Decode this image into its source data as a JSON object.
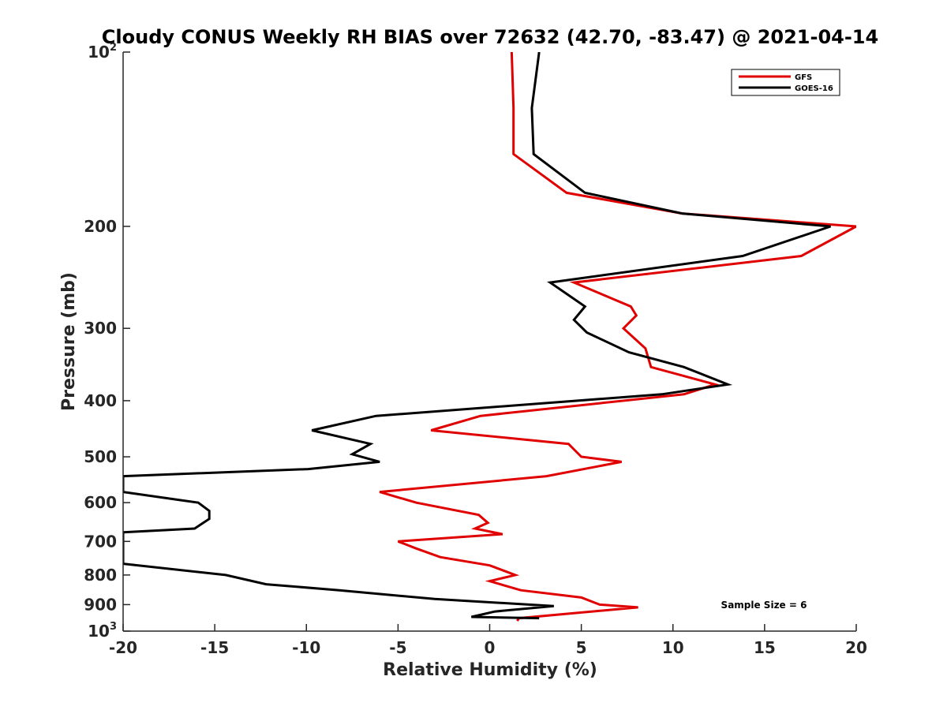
{
  "chart_data": {
    "type": "line",
    "title": "Cloudy CONUS Weekly RH BIAS over 72632 (42.70, -83.47) @ 2021-04-14",
    "xlabel": "Relative Humidity (%)",
    "ylabel": "Pressure (mb)",
    "xlim": [
      -20,
      20
    ],
    "ylim": [
      100,
      1000
    ],
    "y_scale": "log",
    "y_reversed": true,
    "grid": false,
    "legend_position": "top-right",
    "x_ticks": [
      "-20",
      "-15",
      "-10",
      "-5",
      "0",
      "5",
      "10",
      "15",
      "20"
    ],
    "y_ticks": [
      {
        "value": 100,
        "base": "10",
        "exp": "2"
      },
      {
        "value": 200,
        "label": "200"
      },
      {
        "value": 300,
        "label": "300"
      },
      {
        "value": 400,
        "label": "400"
      },
      {
        "value": 500,
        "label": "500"
      },
      {
        "value": 600,
        "label": "600"
      },
      {
        "value": 700,
        "label": "700"
      },
      {
        "value": 800,
        "label": "800"
      },
      {
        "value": 900,
        "label": "900"
      },
      {
        "value": 1000,
        "base": "10",
        "exp": "3"
      }
    ],
    "annotation": "Sample Size = 6",
    "series": [
      {
        "name": "GFS",
        "color": "#e00000",
        "points": [
          [
            1.2,
            100
          ],
          [
            1.3,
            125
          ],
          [
            1.3,
            150
          ],
          [
            4.2,
            175
          ],
          [
            10.5,
            190
          ],
          [
            20.0,
            200
          ],
          [
            17.0,
            225
          ],
          [
            4.6,
            250
          ],
          [
            7.7,
            275
          ],
          [
            8.0,
            285
          ],
          [
            7.3,
            300
          ],
          [
            8.5,
            325
          ],
          [
            8.8,
            350
          ],
          [
            12.3,
            375
          ],
          [
            10.6,
            390
          ],
          [
            -0.5,
            425
          ],
          [
            -3.2,
            450
          ],
          [
            4.3,
            475
          ],
          [
            5.0,
            500
          ],
          [
            7.2,
            510
          ],
          [
            3.1,
            540
          ],
          [
            -6.0,
            575
          ],
          [
            -4.0,
            600
          ],
          [
            -0.6,
            630
          ],
          [
            -0.1,
            650
          ],
          [
            -0.8,
            665
          ],
          [
            0.7,
            680
          ],
          [
            -5.0,
            700
          ],
          [
            -4.0,
            720
          ],
          [
            -2.7,
            745
          ],
          [
            0.0,
            770
          ],
          [
            1.4,
            800
          ],
          [
            0.0,
            820
          ],
          [
            1.7,
            850
          ],
          [
            5.0,
            875
          ],
          [
            6.0,
            900
          ],
          [
            8.1,
            910
          ],
          [
            1.6,
            950
          ],
          [
            1.5,
            960
          ]
        ]
      },
      {
        "name": "GOES-16",
        "color": "#000000",
        "points": [
          [
            2.7,
            100
          ],
          [
            2.3,
            125
          ],
          [
            2.4,
            150
          ],
          [
            5.2,
            175
          ],
          [
            10.5,
            190
          ],
          [
            18.6,
            200
          ],
          [
            13.8,
            225
          ],
          [
            3.3,
            250
          ],
          [
            5.2,
            275
          ],
          [
            4.6,
            290
          ],
          [
            5.3,
            305
          ],
          [
            7.6,
            330
          ],
          [
            10.6,
            350
          ],
          [
            13.0,
            375
          ],
          [
            9.4,
            390
          ],
          [
            -6.2,
            425
          ],
          [
            -9.7,
            450
          ],
          [
            -6.5,
            475
          ],
          [
            -7.5,
            495
          ],
          [
            -6.0,
            510
          ],
          [
            -9.9,
            525
          ],
          [
            -20.0,
            540
          ],
          [
            -20.0,
            575
          ],
          [
            -15.9,
            600
          ],
          [
            -15.3,
            620
          ],
          [
            -15.3,
            640
          ],
          [
            -16.1,
            665
          ],
          [
            -20.0,
            675
          ],
          [
            -20.0,
            765
          ],
          [
            -14.4,
            800
          ],
          [
            -12.2,
            830
          ],
          [
            -8.2,
            850
          ],
          [
            -3.0,
            880
          ],
          [
            3.5,
            905
          ],
          [
            0.3,
            925
          ],
          [
            -1.0,
            945
          ],
          [
            2.7,
            950
          ]
        ]
      }
    ]
  }
}
